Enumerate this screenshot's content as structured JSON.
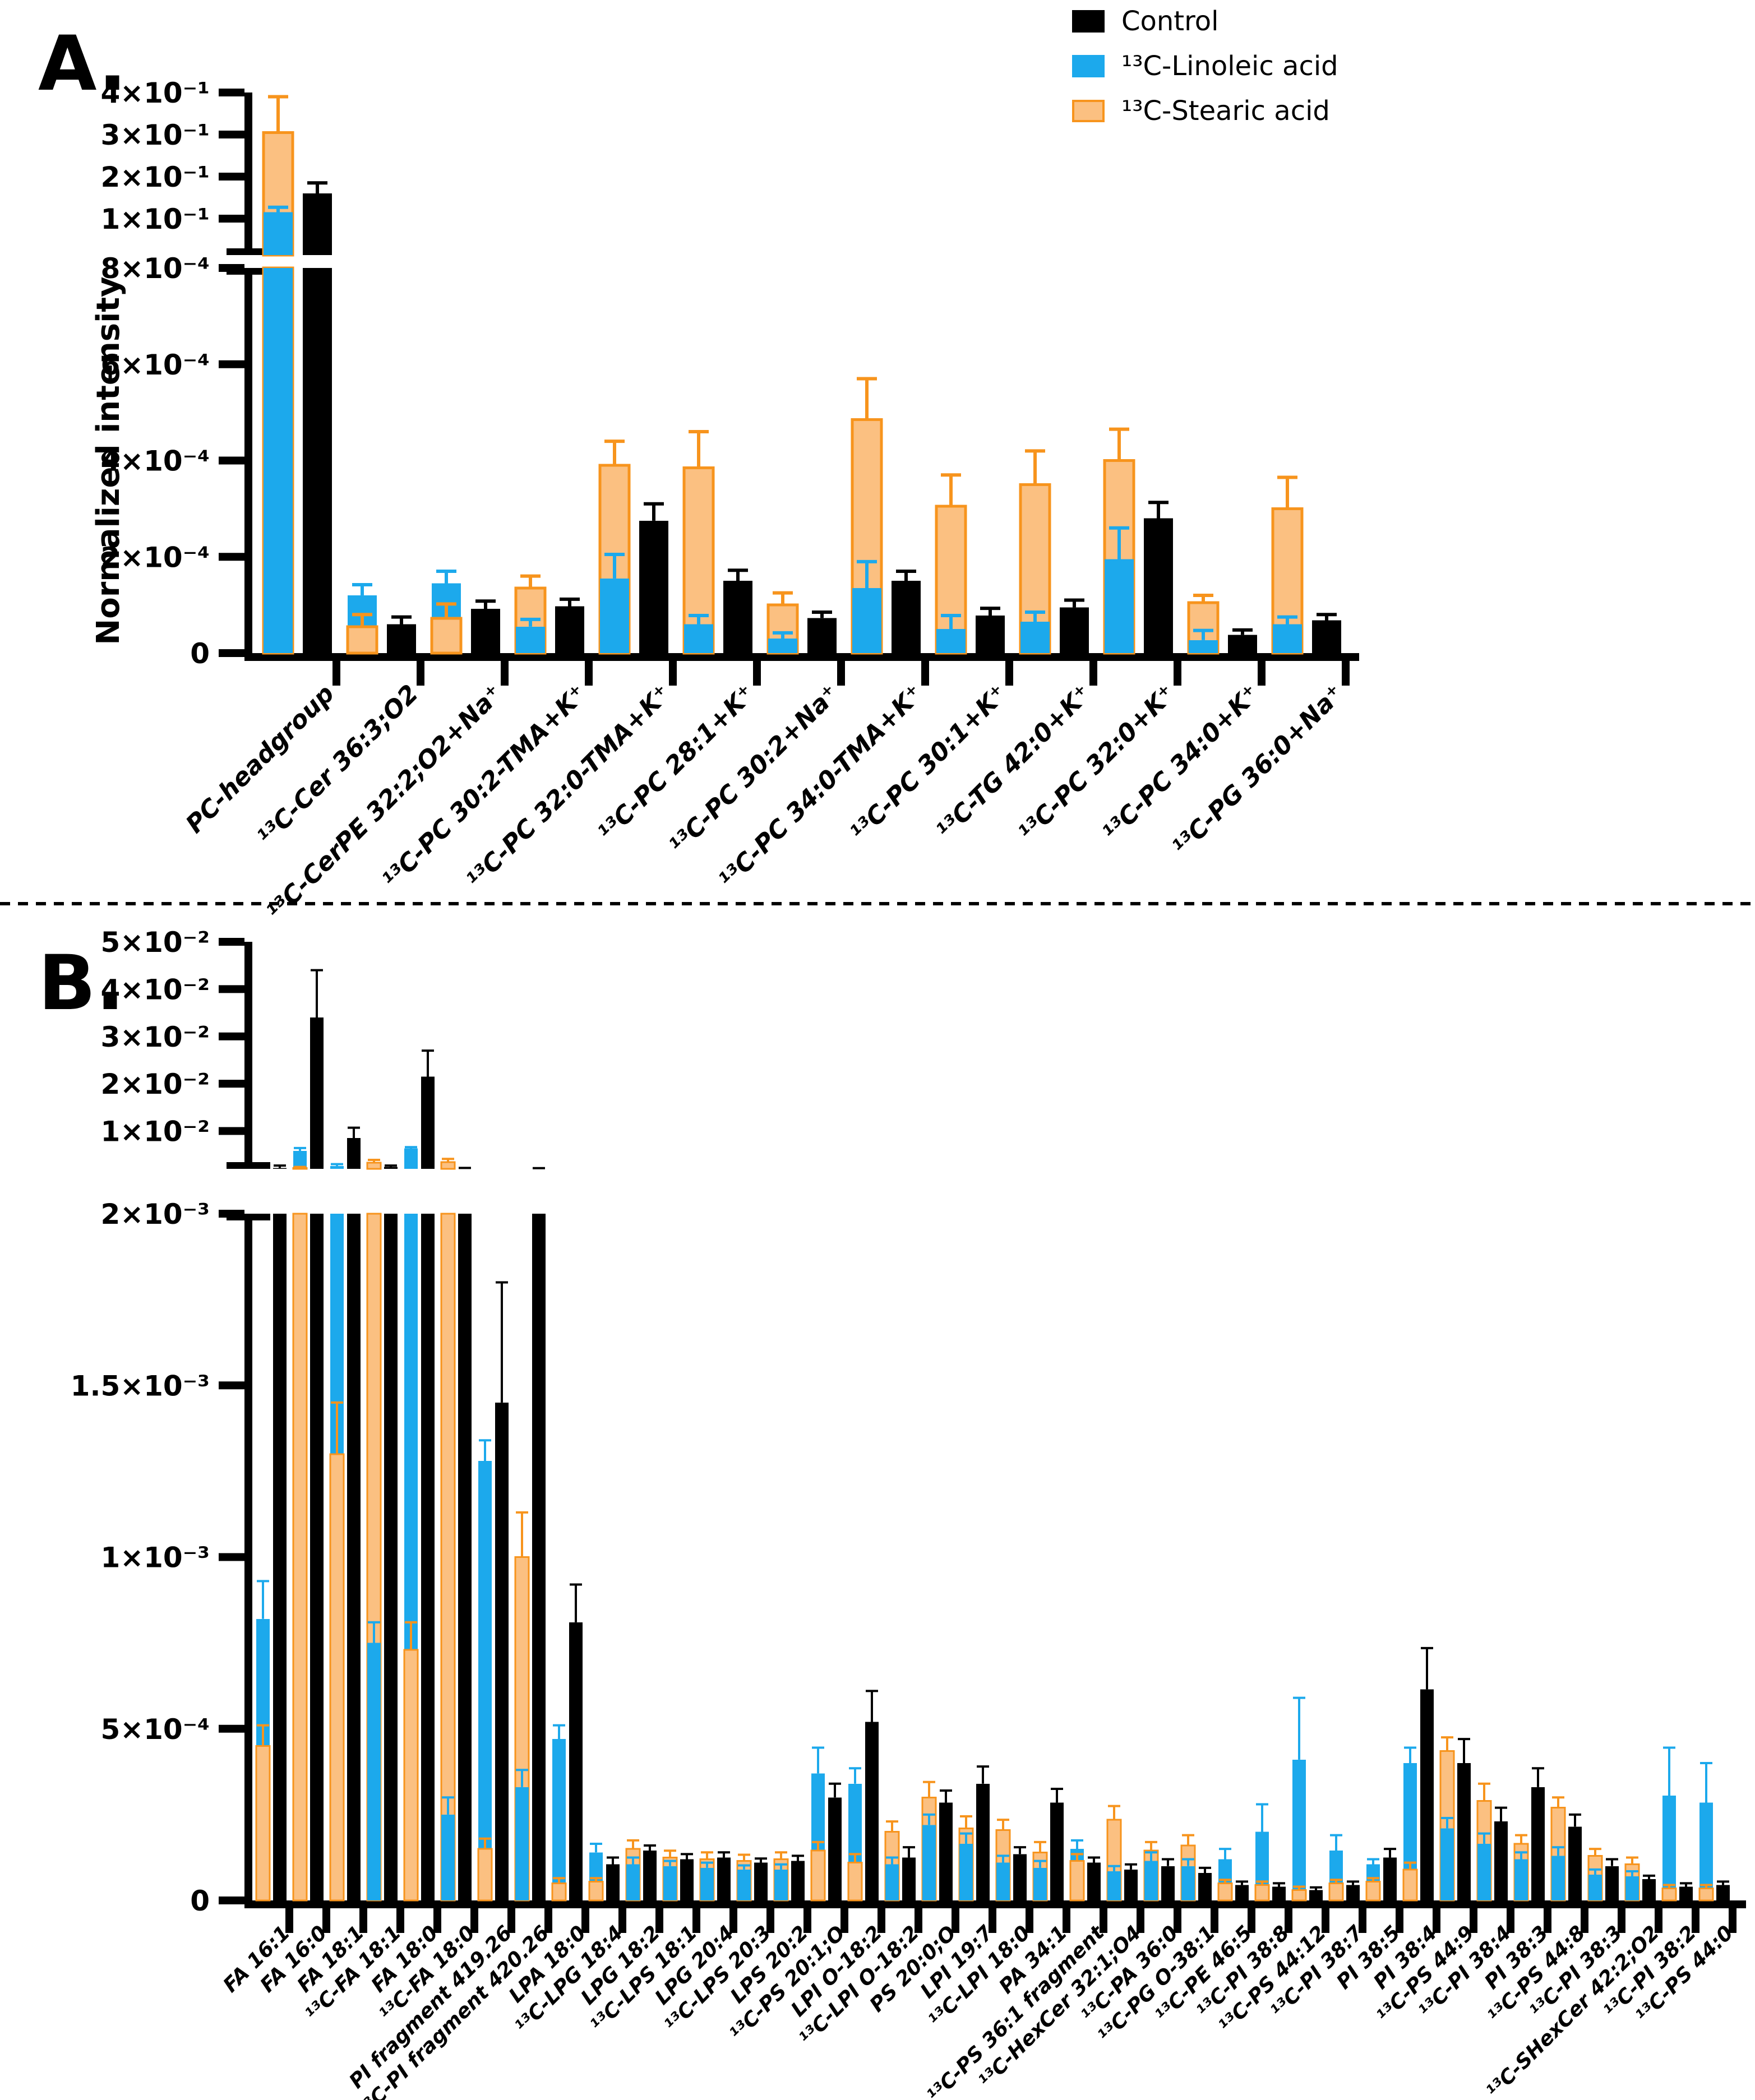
{
  "legend": {
    "items": [
      {
        "label": "Control",
        "fill": "#000000",
        "border": "#000000"
      },
      {
        "label": "¹³C-Linoleic acid",
        "fill": "#1CA9EC",
        "border": "#1CA9EC"
      },
      {
        "label": "¹³C-Stearic acid",
        "fill": "#FBC081",
        "border": "#F7941D"
      }
    ]
  },
  "colors": {
    "linoleic_blue": "#1CA9EC",
    "stearic_fill": "#FBC081",
    "stearic_border": "#F7941D",
    "control_black": "#000000"
  },
  "chart_data": [
    {
      "type": "bar",
      "panel_label": "A.",
      "ylabel": "Normalized intensity",
      "bar_style": "superimposed pair (linoleic/stearic) + separate control bar, SD whiskers",
      "axis_break": true,
      "upper_axis": {
        "range": [
          0.0133,
          0.4
        ],
        "ticks": [
          [
            0.1,
            "1×10⁻¹"
          ],
          [
            0.2,
            "2×10⁻¹"
          ],
          [
            0.3,
            "3×10⁻¹"
          ],
          [
            0.4,
            "4×10⁻¹"
          ]
        ]
      },
      "lower_axis": {
        "range": [
          0,
          0.0008
        ],
        "ticks": [
          [
            0,
            "0"
          ],
          [
            0.0002,
            "2×10⁻⁴"
          ],
          [
            0.0004,
            "4×10⁻⁴"
          ],
          [
            0.0006,
            "6×10⁻⁴"
          ],
          [
            0.0008,
            "8×10⁻⁴"
          ]
        ]
      },
      "categories": [
        "PC-headgroup",
        "¹³C-Cer 36:3;O2",
        "¹³C-CerPE 32:2;O2+Na⁺",
        "¹³C-PC 30:2-TMA+K⁺",
        "¹³C-PC 32:0-TMA+K⁺",
        "¹³C-PC 28:1+K⁺",
        "¹³C-PC 30:2+Na⁺",
        "¹³C-PC 34:0-TMA+K⁺",
        "¹³C-PC 30:1+K⁺",
        "¹³C-TG 42:0+K⁺",
        "¹³C-PC 32:0+K⁺",
        "¹³C-PC 34:0+K⁺",
        "¹³C-PG 36:0+Na⁺"
      ],
      "value_scale": 1,
      "series": [
        {
          "name": "¹³C-Linoleic acid",
          "color": "#1CA9EC",
          "values": [
            0.115,
            0.00012,
            0.000145,
            5.5e-05,
            0.000155,
            6e-05,
            3e-05,
            0.000135,
            5e-05,
            6.5e-05,
            0.000195,
            2.7e-05,
            6e-05
          ],
          "errors": [
            0.012,
            2.2e-05,
            2.5e-05,
            1.5e-05,
            5e-05,
            1.8e-05,
            1.2e-05,
            5.5e-05,
            2.8e-05,
            2e-05,
            6.5e-05,
            2e-05,
            1.5e-05
          ]
        },
        {
          "name": "¹³C-Stearic acid",
          "color": "#F7941D",
          "fill": "#FBC081",
          "values": [
            0.305,
            5.5e-05,
            7.2e-05,
            0.000135,
            0.00039,
            0.000385,
            0.0001,
            0.000485,
            0.000305,
            0.00035,
            0.0004,
            0.000105,
            0.0003
          ],
          "errors": [
            0.085,
            2.5e-05,
            3e-05,
            2.5e-05,
            5e-05,
            7.5e-05,
            2.5e-05,
            8.5e-05,
            6.5e-05,
            7e-05,
            6.5e-05,
            1.5e-05,
            6.5e-05
          ]
        },
        {
          "name": "Control",
          "color": "#000000",
          "values": [
            0.16,
            6e-05,
            9.2e-05,
            9.7e-05,
            0.000275,
            0.00015,
            7.3e-05,
            0.00015,
            7.8e-05,
            9.5e-05,
            0.00028,
            3.8e-05,
            6.8e-05
          ],
          "errors": [
            0.025,
            1.5e-05,
            1.6e-05,
            1.5e-05,
            3.5e-05,
            2.2e-05,
            1.2e-05,
            2e-05,
            1.5e-05,
            1.5e-05,
            3.3e-05,
            1e-05,
            1.2e-05
          ]
        }
      ]
    },
    {
      "type": "bar",
      "panel_label": "B.",
      "ylabel": "",
      "bar_style": "superimposed pair (linoleic/stearic) + separate control bar, SD whiskers",
      "axis_break": true,
      "upper_axis": {
        "range": [
          0.002,
          0.05
        ],
        "ticks": [
          [
            0.01,
            "1×10⁻²"
          ],
          [
            0.02,
            "2×10⁻²"
          ],
          [
            0.03,
            "3×10⁻²"
          ],
          [
            0.04,
            "4×10⁻²"
          ],
          [
            0.05,
            "5×10⁻²"
          ]
        ]
      },
      "lower_axis": {
        "range": [
          0,
          0.002
        ],
        "ticks": [
          [
            0,
            "0"
          ],
          [
            0.0005,
            "5×10⁻⁴"
          ],
          [
            0.001,
            "1×10⁻³"
          ],
          [
            0.0015,
            "1.5×10⁻³"
          ],
          [
            0.002,
            "2×10⁻³"
          ]
        ]
      },
      "categories": [
        "FA 16:1",
        "FA 16:0",
        "FA 18:1",
        "¹³C-FA 18:1",
        "FA 18:0",
        "¹³C-FA 18:0",
        "PI fragment 419.26",
        "¹³C-PI fragment 420.26",
        "LPA 18:0",
        "¹³C-LPG 18:4",
        "LPG 18:2",
        "¹³C-LPS 18:1",
        "LPG 20:4",
        "¹³C-LPS 20:3",
        "LPS 20:2",
        "¹³C-PS 20:1;O",
        "LPI O-18:2",
        "¹³C-LPI O-18:2",
        "PS 20:0;O",
        "LPI 19:7",
        "¹³C-LPI 18:0",
        "PA 34:1",
        "¹³C-PS 36:1 fragment",
        "¹³C-HexCer 32:1;O4",
        "¹³C-PA 36:0",
        "¹³C-PG O-38:1",
        "¹³C-PE 46:5",
        "¹³C-PI 38:8",
        "¹³C-PS 44:12",
        "¹³C-PI 38:7",
        "PI 38:5",
        "PI 38:4",
        "¹³C-PS 44:9",
        "¹³C-PI 38:4",
        "PI 38:3",
        "¹³C-PS 44:8",
        "¹³C-PI 38:3",
        "¹³C-SHexCer 42:2;O2",
        "¹³C-PI 38:2",
        "¹³C-PS 44:0"
      ],
      "value_scale": 0.0001,
      "series": [
        {
          "name": "¹³C-Linoleic acid",
          "color": "#1CA9EC",
          "values": [
            8.2,
            58,
            26,
            7.5,
            63,
            2.5,
            12.8,
            3.3,
            4.7,
            1.4,
            1.05,
            1.0,
            0.95,
            0.9,
            0.9,
            3.7,
            3.4,
            1.05,
            2.2,
            1.65,
            1.1,
            0.95,
            1.5,
            0.85,
            1.15,
            1.0,
            1.2,
            2.0,
            4.1,
            1.45,
            1.05,
            4.0,
            2.1,
            1.65,
            1.2,
            1.3,
            0.75,
            0.7,
            3.05,
            2.85
          ],
          "errors": [
            1.1,
            6,
            4,
            0.6,
            3,
            0.5,
            0.6,
            0.5,
            0.4,
            0.25,
            0.2,
            0.15,
            0.15,
            0.12,
            0.15,
            0.75,
            0.45,
            0.2,
            0.3,
            0.3,
            0.2,
            0.2,
            0.25,
            0.15,
            0.25,
            0.2,
            0.3,
            0.8,
            1.8,
            0.45,
            0.15,
            0.45,
            0.3,
            0.3,
            0.2,
            0.25,
            0.15,
            0.15,
            1.4,
            1.15
          ]
        },
        {
          "name": "¹³C-Stearic acid",
          "color": "#F7941D",
          "fill": "#FBC081",
          "values": [
            4.5,
            22,
            13,
            33,
            7.3,
            34,
            1.5,
            10,
            0.5,
            0.55,
            1.5,
            1.25,
            1.2,
            1.15,
            1.2,
            1.45,
            1.1,
            2.0,
            3.0,
            2.1,
            2.05,
            1.4,
            1.15,
            2.35,
            1.45,
            1.6,
            0.5,
            0.45,
            0.3,
            0.5,
            0.55,
            0.9,
            4.35,
            2.9,
            1.65,
            2.7,
            1.3,
            1.05,
            0.35,
            0.35
          ],
          "errors": [
            0.6,
            2,
            1.5,
            6,
            0.8,
            7,
            0.3,
            1.3,
            0.15,
            0.1,
            0.25,
            0.2,
            0.2,
            0.18,
            0.2,
            0.25,
            0.25,
            0.3,
            0.45,
            0.35,
            0.3,
            0.3,
            0.2,
            0.4,
            0.25,
            0.3,
            0.1,
            0.1,
            0.1,
            0.1,
            0.1,
            0.2,
            0.4,
            0.5,
            0.25,
            0.3,
            0.2,
            0.2,
            0.1,
            0.1
          ]
        },
        {
          "name": "Control",
          "color": "#000000",
          "values": [
            22,
            340,
            85,
            24,
            215,
            20,
            14.5,
            20,
            8.1,
            1.05,
            1.45,
            1.2,
            1.25,
            1.1,
            1.15,
            3.0,
            5.2,
            1.25,
            2.85,
            3.4,
            1.35,
            2.85,
            1.1,
            0.9,
            1.0,
            0.8,
            0.45,
            0.4,
            0.3,
            0.45,
            1.25,
            6.15,
            4.0,
            2.3,
            3.3,
            2.15,
            1.0,
            0.62,
            0.4,
            0.45
          ],
          "errors": [
            5,
            100,
            22,
            3,
            55,
            2,
            3.5,
            1.5,
            1.1,
            0.2,
            0.15,
            0.15,
            0.15,
            0.12,
            0.15,
            0.4,
            0.9,
            0.3,
            0.35,
            0.5,
            0.2,
            0.4,
            0.15,
            0.15,
            0.2,
            0.15,
            0.1,
            0.1,
            0.08,
            0.1,
            0.25,
            1.2,
            0.7,
            0.4,
            0.55,
            0.35,
            0.2,
            0.1,
            0.1,
            0.1
          ]
        }
      ]
    }
  ]
}
